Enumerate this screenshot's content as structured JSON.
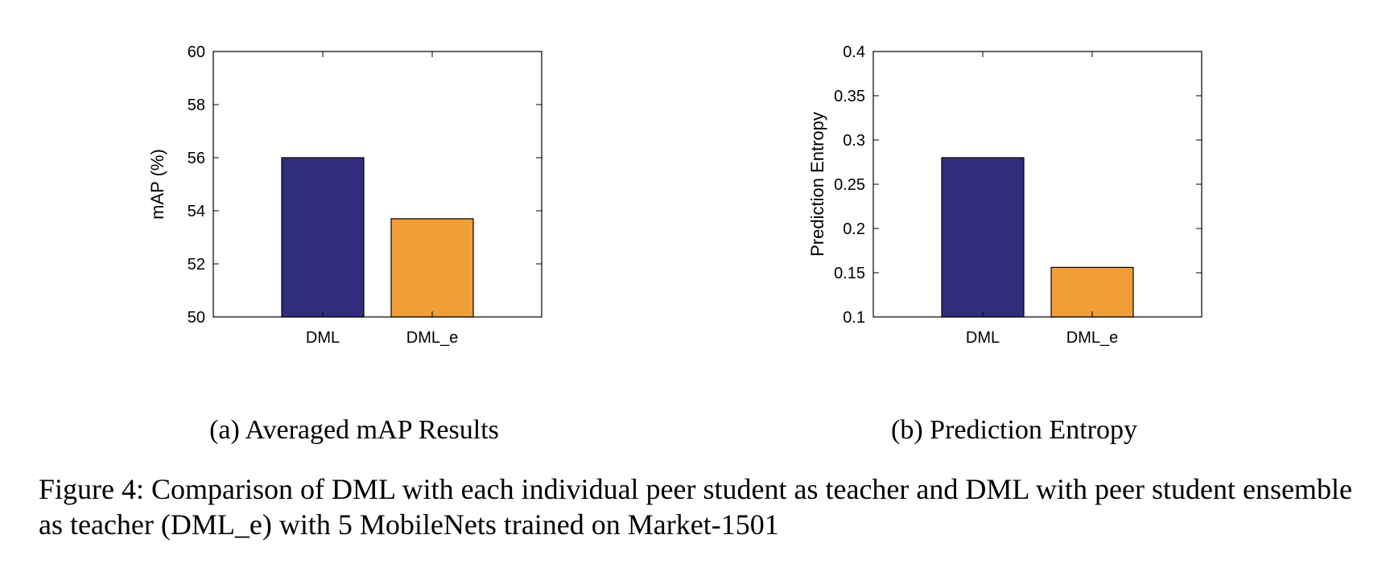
{
  "chart_data": [
    {
      "type": "bar",
      "categories": [
        "DML",
        "DML_e"
      ],
      "values": [
        56.0,
        53.7
      ],
      "colors": [
        "#322C7E",
        "#F29E38"
      ],
      "ylabel": "mAP (%)",
      "xlabel": "",
      "ylim": [
        50,
        60
      ],
      "yticks": [
        "50",
        "52",
        "54",
        "56",
        "58",
        "60"
      ],
      "grid": false,
      "caption": "(a) Averaged mAP Results"
    },
    {
      "type": "bar",
      "categories": [
        "DML",
        "DML_e"
      ],
      "values": [
        0.28,
        0.156
      ],
      "colors": [
        "#322C7E",
        "#F29E38"
      ],
      "ylabel": "Prediction Entropy",
      "xlabel": "",
      "ylim": [
        0.1,
        0.4
      ],
      "yticks": [
        "0.1",
        "0.15",
        "0.2",
        "0.25",
        "0.3",
        "0.35",
        "0.4"
      ],
      "grid": false,
      "caption": "(b) Prediction Entropy"
    }
  ],
  "figure_caption": "Figure 4: Comparison of DML with each individual peer student as teacher and DML with peer student ensemble as teacher (DML_e) with 5 MobileNets trained on Market-1501"
}
